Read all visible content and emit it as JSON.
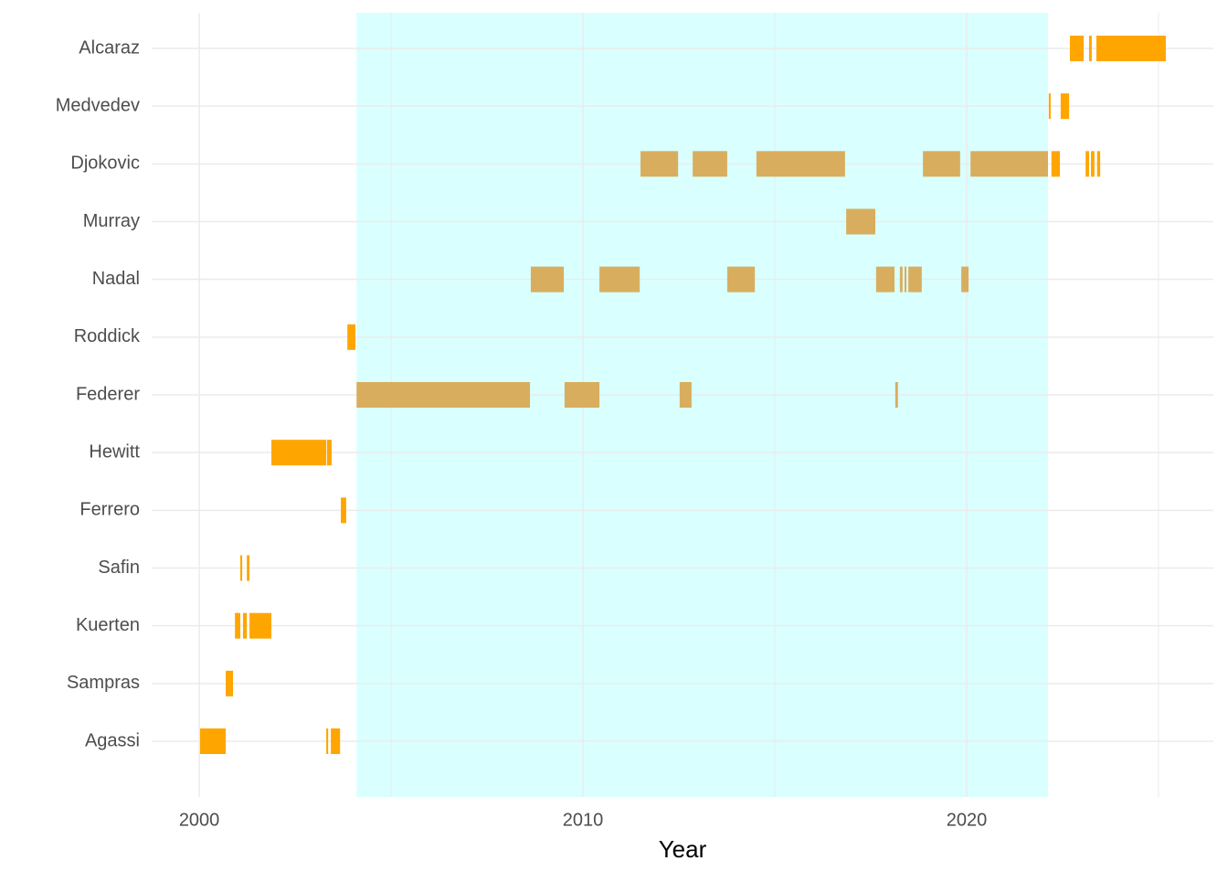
{
  "chart_data": {
    "type": "timeline",
    "x_label": "Year",
    "xlim": [
      1998.76,
      2026.43
    ],
    "xticks": [
      2000,
      2010,
      2020
    ],
    "xminor": [
      2005,
      2015,
      2025
    ],
    "grid": true,
    "era": {
      "start": 2004.1,
      "end": 2022.12,
      "color": "#d9ffff"
    },
    "color_outside": "#ffa500",
    "color_inside": "#d8ae5e",
    "series": [
      {
        "name": "Agassi",
        "values": [
          [
            2000.02,
            2000.69
          ],
          [
            2003.31,
            2003.36
          ],
          [
            2003.43,
            2003.67
          ]
        ]
      },
      {
        "name": "Sampras",
        "values": [
          [
            2000.69,
            2000.88
          ]
        ]
      },
      {
        "name": "Kuerten",
        "values": [
          [
            2000.93,
            2001.07
          ],
          [
            2001.14,
            2001.24
          ],
          [
            2001.31,
            2001.88
          ]
        ]
      },
      {
        "name": "Safin",
        "values": [
          [
            2001.07,
            2001.12
          ],
          [
            2001.24,
            2001.31
          ]
        ]
      },
      {
        "name": "Ferrero",
        "values": [
          [
            2003.69,
            2003.83
          ]
        ]
      },
      {
        "name": "Hewitt",
        "values": [
          [
            2001.88,
            2003.31
          ],
          [
            2003.33,
            2003.45
          ]
        ]
      },
      {
        "name": "Federer",
        "values": [
          [
            2004.1,
            2008.62
          ],
          [
            2009.52,
            2010.43
          ],
          [
            2012.52,
            2012.83
          ],
          [
            2018.14,
            2018.21
          ]
        ]
      },
      {
        "name": "Roddick",
        "values": [
          [
            2003.86,
            2004.07
          ]
        ]
      },
      {
        "name": "Nadal",
        "values": [
          [
            2008.64,
            2009.5
          ],
          [
            2010.43,
            2011.48
          ],
          [
            2013.76,
            2014.48
          ],
          [
            2017.64,
            2018.12
          ],
          [
            2018.26,
            2018.33
          ],
          [
            2018.38,
            2018.43
          ],
          [
            2018.48,
            2018.83
          ],
          [
            2019.86,
            2020.05
          ]
        ]
      },
      {
        "name": "Murray",
        "values": [
          [
            2016.86,
            2017.62
          ]
        ]
      },
      {
        "name": "Djokovic",
        "values": [
          [
            2011.5,
            2012.48
          ],
          [
            2012.86,
            2013.76
          ],
          [
            2014.52,
            2016.83
          ],
          [
            2018.86,
            2019.83
          ],
          [
            2020.1,
            2022.12
          ],
          [
            2022.21,
            2022.43
          ],
          [
            2023.1,
            2023.19
          ],
          [
            2023.24,
            2023.33
          ],
          [
            2023.4,
            2023.48
          ]
        ]
      },
      {
        "name": "Medvedev",
        "values": [
          [
            2022.14,
            2022.19
          ],
          [
            2022.45,
            2022.67
          ]
        ]
      },
      {
        "name": "Alcaraz",
        "values": [
          [
            2022.69,
            2023.05
          ],
          [
            2023.19,
            2023.26
          ],
          [
            2023.38,
            2025.19
          ]
        ]
      }
    ]
  }
}
